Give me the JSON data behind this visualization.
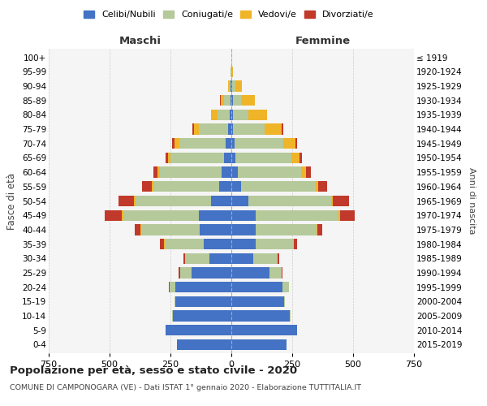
{
  "age_groups": [
    "0-4",
    "5-9",
    "10-14",
    "15-19",
    "20-24",
    "25-29",
    "30-34",
    "35-39",
    "40-44",
    "45-49",
    "50-54",
    "55-59",
    "60-64",
    "65-69",
    "70-74",
    "75-79",
    "80-84",
    "85-89",
    "90-94",
    "95-99",
    "100+"
  ],
  "birth_years": [
    "2015-2019",
    "2010-2014",
    "2005-2009",
    "2000-2004",
    "1995-1999",
    "1990-1994",
    "1985-1989",
    "1980-1984",
    "1975-1979",
    "1970-1974",
    "1965-1969",
    "1960-1964",
    "1955-1959",
    "1950-1954",
    "1945-1949",
    "1940-1944",
    "1935-1939",
    "1930-1934",
    "1925-1929",
    "1920-1924",
    "≤ 1919"
  ],
  "maschi": {
    "celibi": [
      225,
      270,
      240,
      230,
      230,
      165,
      90,
      115,
      130,
      135,
      85,
      50,
      40,
      30,
      25,
      15,
      8,
      5,
      2,
      0,
      0
    ],
    "coniugati": [
      0,
      0,
      2,
      5,
      25,
      45,
      100,
      160,
      240,
      310,
      310,
      270,
      255,
      220,
      190,
      120,
      50,
      25,
      8,
      2,
      0
    ],
    "vedovi": [
      0,
      0,
      0,
      0,
      0,
      1,
      1,
      2,
      3,
      4,
      5,
      8,
      10,
      10,
      20,
      20,
      25,
      15,
      5,
      0,
      0
    ],
    "divorziati": [
      0,
      0,
      0,
      0,
      2,
      5,
      5,
      15,
      25,
      70,
      65,
      40,
      15,
      10,
      10,
      5,
      2,
      2,
      0,
      0,
      0
    ]
  },
  "femmine": {
    "nubili": [
      225,
      270,
      240,
      215,
      210,
      155,
      90,
      100,
      100,
      100,
      70,
      40,
      25,
      15,
      12,
      8,
      5,
      5,
      3,
      0,
      0
    ],
    "coniugate": [
      0,
      0,
      2,
      5,
      25,
      50,
      100,
      155,
      250,
      340,
      340,
      305,
      260,
      230,
      200,
      130,
      65,
      35,
      15,
      2,
      0
    ],
    "vedove": [
      0,
      0,
      0,
      0,
      0,
      0,
      1,
      2,
      3,
      5,
      8,
      12,
      20,
      35,
      50,
      70,
      75,
      55,
      25,
      5,
      0
    ],
    "divorziate": [
      0,
      0,
      0,
      0,
      2,
      5,
      5,
      12,
      20,
      60,
      65,
      35,
      20,
      10,
      8,
      5,
      2,
      2,
      0,
      0,
      0
    ]
  },
  "color_celibi": "#4472c4",
  "color_coniugati": "#b5c99a",
  "color_vedovi": "#f0b429",
  "color_divorziati": "#c0392b",
  "xlim": 750,
  "title": "Popolazione per età, sesso e stato civile - 2020",
  "subtitle": "COMUNE DI CAMPONOGARA (VE) - Dati ISTAT 1° gennaio 2020 - Elaborazione TUTTITALIA.IT",
  "ylabel_left": "Fasce di età",
  "ylabel_right": "Anni di nascita",
  "xlabel_maschi": "Maschi",
  "xlabel_femmine": "Femmine",
  "legend_labels": [
    "Celibi/Nubili",
    "Coniugati/e",
    "Vedovi/e",
    "Divorziati/e"
  ]
}
